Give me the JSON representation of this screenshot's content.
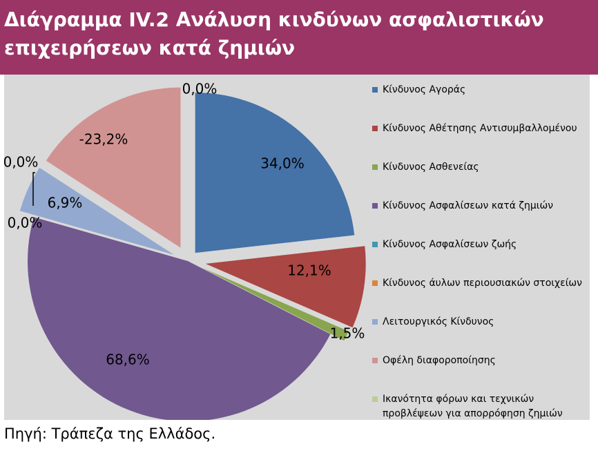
{
  "title": "Διάγραμμα IV.2 Ανάλυση κινδύνων ασφαλιστικών\nεπιχειρήσεων κατά ζημιών",
  "source": "Πηγή: Τράπεζα της Ελλάδος.",
  "chart_data": {
    "type": "pie",
    "title": "Διάγραμμα IV.2 Ανάλυση κινδύνων ασφαλιστικών επιχειρήσεων κατά ζημιών",
    "legend_position": "right",
    "slices": [
      {
        "name": "Κίνδυνος Αγοράς",
        "value": 34.0,
        "label": "34,0%",
        "color": "#4572a7"
      },
      {
        "name": "Κίνδυνος Αθέτησης Αντισυμβαλλομένου",
        "value": 12.1,
        "label": "12,1%",
        "color": "#aa4643"
      },
      {
        "name": "Κίνδυνος Ασθενείας",
        "value": 1.5,
        "label": "1,5%",
        "color": "#89a54e"
      },
      {
        "name": "Κίνδυνος Ασφαλίσεων κατά ζημιών",
        "value": 68.6,
        "label": "68,6%",
        "color": "#71588f"
      },
      {
        "name": "Κίνδυνος Ασφαλίσεων ζωής",
        "value": 0.0,
        "label": "0,0%",
        "color": "#4198af"
      },
      {
        "name": "Κίνδυνος άυλων περιουσιακών στοιχείων",
        "value": 0.0,
        "label": "0,0%",
        "color": "#db843d"
      },
      {
        "name": "Λειτουργικός Κίνδυνος",
        "value": 6.9,
        "label": "6,9%",
        "color": "#93a9cf"
      },
      {
        "name": "Οφέλη διαφοροποίησης",
        "value": -23.2,
        "label": "-23,2%",
        "color": "#d19392"
      },
      {
        "name": "Ικανότητα φόρων και τεχνικών προβλέψεων για απορρόφηση ζημιών",
        "value": 0.0,
        "label": "0,0%",
        "color": "#b9cd96"
      }
    ]
  }
}
